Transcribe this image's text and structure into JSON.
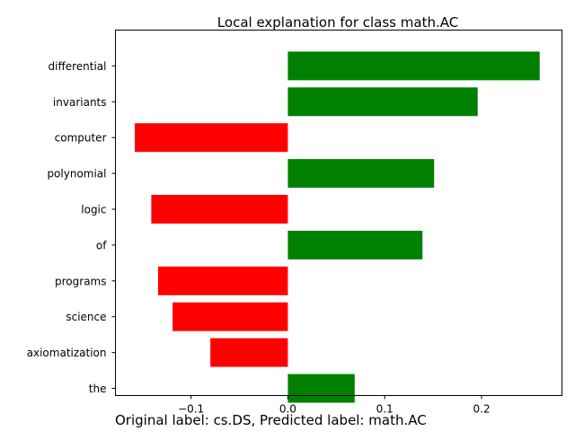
{
  "chart_data": {
    "type": "bar",
    "orientation": "horizontal",
    "title": "Local explanation for class math.AC",
    "caption": "Original label: cs.DS, Predicted label: math.AC",
    "categories": [
      "differential",
      "invariants",
      "computer",
      "polynomial",
      "logic",
      "of",
      "programs",
      "science",
      "axiomatization",
      "the"
    ],
    "values": [
      0.26,
      0.196,
      -0.158,
      0.151,
      -0.141,
      0.139,
      -0.134,
      -0.119,
      -0.08,
      0.069
    ],
    "xlim": [
      -0.178,
      0.283
    ],
    "xticks": [
      -0.1,
      0.0,
      0.1,
      0.2
    ],
    "xtick_labels": [
      "−0.1",
      "0.0",
      "0.1",
      "0.2"
    ],
    "positive_color": "#008000",
    "negative_color": "#ff0000",
    "grid": false
  }
}
